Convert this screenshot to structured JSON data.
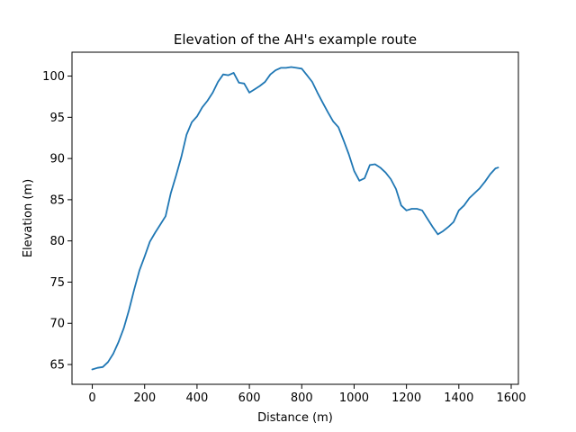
{
  "chart_data": {
    "type": "line",
    "title": "Elevation of the AH's example route",
    "xlabel": "Distance (m)",
    "ylabel": "Elevation (m)",
    "xlim": [
      -77.5,
      1627.5
    ],
    "ylim": [
      62.6,
      102.9
    ],
    "xticks": [
      0,
      200,
      400,
      600,
      800,
      1000,
      1200,
      1400,
      1600
    ],
    "yticks": [
      65,
      70,
      75,
      80,
      85,
      90,
      95,
      100
    ],
    "grid": false,
    "line_color": "#1f77b4",
    "series": [
      {
        "x": [
          0,
          20,
          40,
          60,
          80,
          100,
          120,
          140,
          160,
          180,
          200,
          220,
          240,
          260,
          280,
          300,
          320,
          340,
          360,
          380,
          400,
          420,
          440,
          460,
          480,
          500,
          520,
          540,
          560,
          580,
          600,
          620,
          640,
          660,
          680,
          700,
          720,
          740,
          760,
          780,
          800,
          820,
          840,
          860,
          880,
          900,
          920,
          940,
          960,
          980,
          1000,
          1020,
          1040,
          1060,
          1080,
          1100,
          1120,
          1140,
          1160,
          1180,
          1200,
          1220,
          1240,
          1260,
          1280,
          1300,
          1320,
          1340,
          1360,
          1380,
          1400,
          1420,
          1440,
          1460,
          1480,
          1500,
          1520,
          1540,
          1550
        ],
        "y": [
          64.4,
          64.6,
          64.7,
          65.3,
          66.3,
          67.7,
          69.4,
          71.6,
          74.1,
          76.4,
          78.1,
          79.9,
          81.0,
          82.0,
          83.0,
          85.8,
          87.9,
          90.2,
          92.9,
          94.4,
          95.1,
          96.2,
          97.0,
          98.0,
          99.3,
          100.2,
          100.1,
          100.4,
          99.2,
          99.1,
          98.0,
          98.4,
          98.8,
          99.3,
          100.2,
          100.7,
          101.0,
          101.0,
          101.1,
          101.0,
          100.9,
          100.1,
          99.3,
          98.0,
          96.8,
          95.6,
          94.5,
          93.8,
          92.2,
          90.5,
          88.5,
          87.3,
          87.6,
          89.2,
          89.3,
          88.9,
          88.3,
          87.5,
          86.3,
          84.3,
          83.7,
          83.9,
          83.9,
          83.7,
          82.7,
          81.7,
          80.8,
          81.2,
          81.7,
          82.3,
          83.7,
          84.3,
          85.2,
          85.8,
          86.4,
          87.2,
          88.1,
          88.8,
          88.9
        ]
      }
    ]
  }
}
